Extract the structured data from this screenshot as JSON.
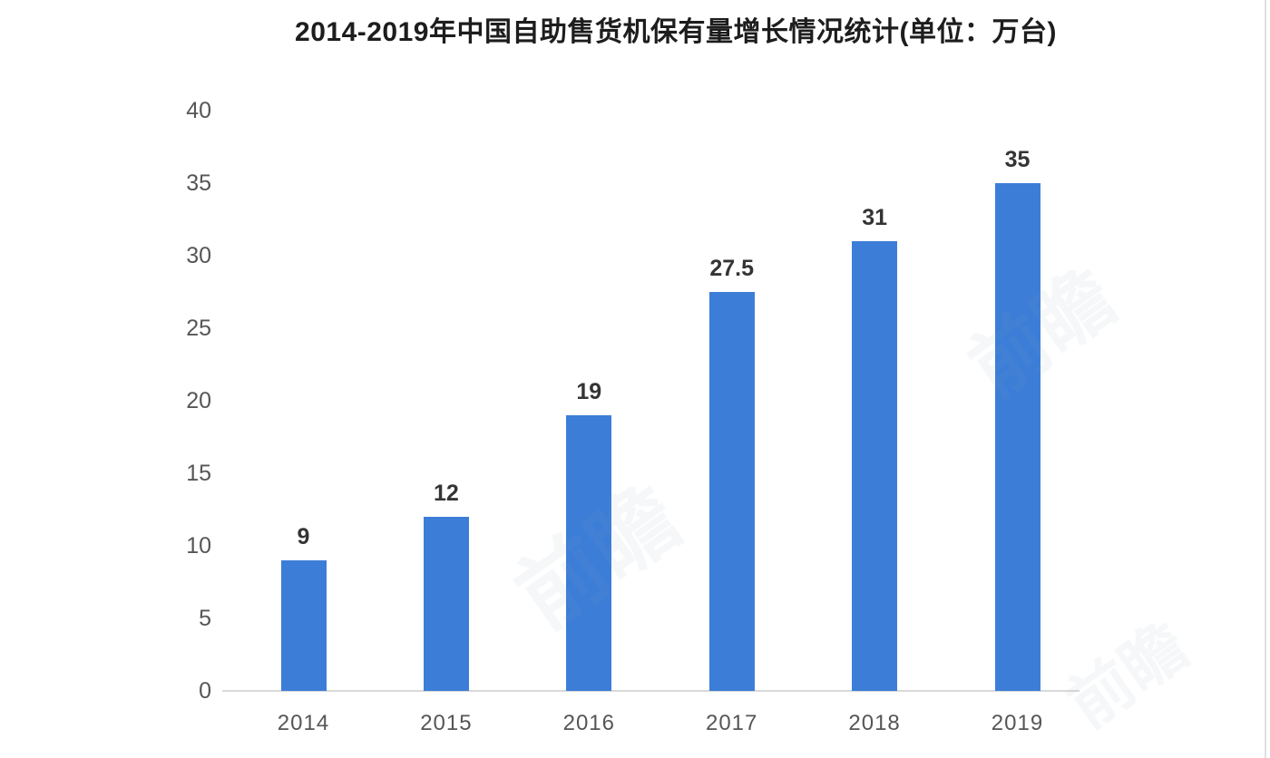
{
  "chart_data": {
    "type": "bar",
    "title": "2014-2019年中国自助售货机保有量增长情况统计(单位：万台)",
    "categories": [
      "2014",
      "2015",
      "2016",
      "2017",
      "2018",
      "2019"
    ],
    "values": [
      9,
      12,
      19,
      27.5,
      31,
      35
    ],
    "value_labels": [
      "9",
      "12",
      "19",
      "27.5",
      "31",
      "35"
    ],
    "series_name": "自助售货机保有量",
    "unit": "万台",
    "yticks": [
      0,
      5,
      10,
      15,
      20,
      25,
      30,
      35,
      40
    ],
    "ylim": [
      0,
      40
    ],
    "xlabel": "",
    "ylabel": "",
    "grid": false,
    "legend_position": "none",
    "bar_color": "#3c7ed7",
    "axis_line_color": "#d9d9d9",
    "tick_label_color": "#565656",
    "value_label_color": "#343434",
    "title_color": "#1d1d1d",
    "background_color": "#ffffff",
    "watermark_text": "前瞻"
  }
}
